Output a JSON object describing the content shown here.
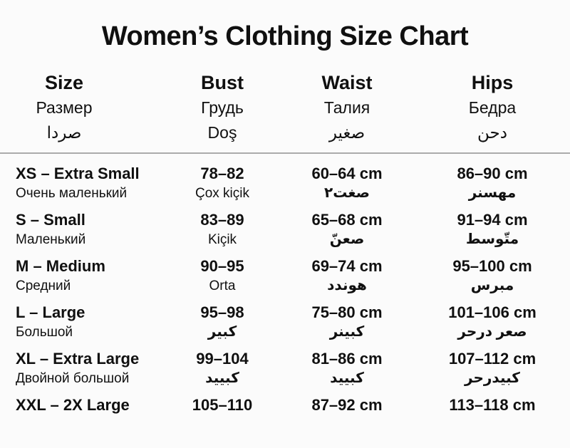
{
  "title": "Women’s Clothing Size Chart",
  "columns": [
    {
      "en": "Size",
      "ru": "Размер",
      "third": "صردا"
    },
    {
      "en": "Bust",
      "ru": "Грудь",
      "third": "Doş"
    },
    {
      "en": "Waist",
      "ru": "Талия",
      "third": "صغير"
    },
    {
      "en": "Hips",
      "ru": "Бедра",
      "third": "دحن"
    }
  ],
  "rows": [
    {
      "size": {
        "main": "XS – Extra Small",
        "sub": "Очень маленький"
      },
      "bust": {
        "main": "78–82",
        "sub": "Çox kiçik"
      },
      "waist": {
        "main": "60–64 cm",
        "sub": "صغت٢"
      },
      "hips": {
        "main": "86–90 cm",
        "sub": "مهسنر"
      }
    },
    {
      "size": {
        "main": "S – Small",
        "sub": "Маленький"
      },
      "bust": {
        "main": "83–89",
        "sub": "Kiçik"
      },
      "waist": {
        "main": "65–68 cm",
        "sub": "صعنّ"
      },
      "hips": {
        "main": "91–94 cm",
        "sub": "متّوسط"
      }
    },
    {
      "size": {
        "main": "M – Medium",
        "sub": "Средний"
      },
      "bust": {
        "main": "90–95",
        "sub": "Orta"
      },
      "waist": {
        "main": "69–74 cm",
        "sub": "هوندد"
      },
      "hips": {
        "main": "95–100 cm",
        "sub": "مبرس"
      }
    },
    {
      "size": {
        "main": "L – Large",
        "sub": "Большой"
      },
      "bust": {
        "main": "95–98",
        "sub": "كبير"
      },
      "waist": {
        "main": "75–80 cm",
        "sub": "كبينر"
      },
      "hips": {
        "main": "101–106 cm",
        "sub": "صعر درحر"
      }
    },
    {
      "size": {
        "main": "XL – Extra Large",
        "sub": "Двойной большой"
      },
      "bust": {
        "main": "99–104",
        "sub": "كبييد"
      },
      "waist": {
        "main": "81–86 cm",
        "sub": "كبييد"
      },
      "hips": {
        "main": "107–112 cm",
        "sub": "كبيدرحر"
      }
    },
    {
      "size": {
        "main": "XXL – 2X Large",
        "sub": ""
      },
      "bust": {
        "main": "105–110",
        "sub": ""
      },
      "waist": {
        "main": "87–92 cm",
        "sub": ""
      },
      "hips": {
        "main": "113–118 cm",
        "sub": ""
      }
    }
  ]
}
